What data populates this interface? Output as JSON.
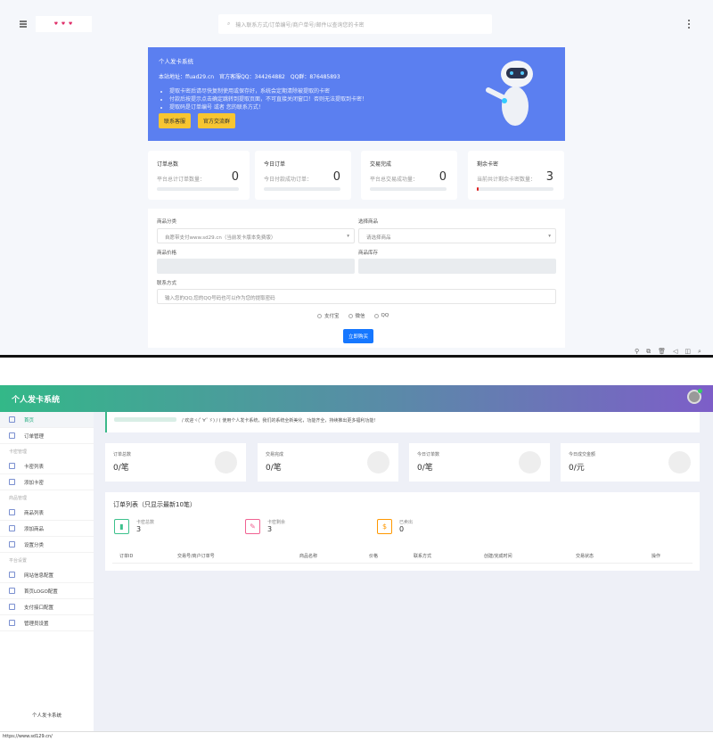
{
  "top": {
    "search_placeholder": "输入联系方式/订单编号/商户单号/邮件以查询您的卡密",
    "logo_text": "logo",
    "banner": {
      "title": "个人发卡系统",
      "info": "本站地址：ffuad29.cn　官方客服QQ：344264882　QQ群：876485893",
      "notes": [
        "提取卡密后请尽快复制使用或保存好，系统会定期清除被提取的卡密",
        "付款后按提示点击确定跳转到提取页面，不可直接关闭窗口！否则无法提取到卡密！",
        "提取码是订单编号 或者 您的联系方式！"
      ],
      "buttons": [
        "联系客服",
        "官方交流群"
      ]
    },
    "stats": [
      {
        "title": "订单总数",
        "desc": "平台总计订单数量：",
        "value": "0",
        "progress": 0
      },
      {
        "title": "今日订单",
        "desc": "今日付款成功订单：",
        "value": "0",
        "progress": 0
      },
      {
        "title": "交易完成",
        "desc": "平台总交易成功量：",
        "value": "0",
        "progress": 0
      },
      {
        "title": "剩余卡密",
        "desc": "当前共计剩余卡密数量：",
        "value": "3",
        "progress": 2
      }
    ],
    "form": {
      "category_label": "商品分类",
      "category_value": "自愿带支付www.sd29.cn（当前发卡版本免费版）",
      "product_label": "选择商品",
      "product_placeholder": "请选择商品",
      "price_label": "商品价格",
      "stock_label": "商品库存",
      "contact_label": "联系方式",
      "contact_placeholder": "输入您的QQ,您的QQ号码也可以作为您的提取密码",
      "payments": [
        "支付宝",
        "微信",
        "QQ"
      ],
      "buy_button": "立即购买"
    },
    "toolbar_icons": [
      "pin-icon",
      "copy-icon",
      "trash-icon",
      "mute-icon",
      "window-icon",
      "search-icon"
    ]
  },
  "bottom": {
    "app_title": "个人发卡系统",
    "sidebar": {
      "items": [
        {
          "type": "item",
          "label": "首页",
          "active": true
        },
        {
          "type": "item",
          "label": "订单管理"
        },
        {
          "type": "group",
          "label": "卡密管理"
        },
        {
          "type": "item",
          "label": "卡密列表"
        },
        {
          "type": "item",
          "label": "添加卡密"
        },
        {
          "type": "group",
          "label": "商品管理"
        },
        {
          "type": "item",
          "label": "商品列表"
        },
        {
          "type": "item",
          "label": "添加商品"
        },
        {
          "type": "item",
          "label": "设置分类"
        },
        {
          "type": "group",
          "label": "平台设置"
        },
        {
          "type": "item",
          "label": "网站信息配置"
        },
        {
          "type": "item",
          "label": "首页LOGO配置"
        },
        {
          "type": "item",
          "label": "支付接口配置"
        },
        {
          "type": "item",
          "label": "管理员设置"
        }
      ],
      "footer": "个人发卡系统"
    },
    "welcome": "/ 欢迎ヾ(ﾟ∀ﾟゞ) / ( 使用个人发卡系统，我们的系统全新美化，功能齐全，持续推出更多福利功能!",
    "stats": [
      {
        "label": "订单总数",
        "value": "0/笔"
      },
      {
        "label": "交易完成",
        "value": "0/笔"
      },
      {
        "label": "今日订单数",
        "value": "0/笔"
      },
      {
        "label": "今日成交金额",
        "value": "0/元"
      }
    ],
    "orders": {
      "title": "订单列表（只显示最新10笔）",
      "summary": [
        {
          "label": "卡密总数",
          "value": "3",
          "color": "#3cc18c",
          "icon": "chart-icon"
        },
        {
          "label": "卡密剩余",
          "value": "3",
          "color": "#f06292",
          "icon": "card-icon"
        },
        {
          "label": "已卖出",
          "value": "0",
          "color": "#ff9800",
          "icon": "dollar-icon"
        }
      ],
      "columns": [
        "订单ID",
        "交易号/商户订单号",
        "商品名称",
        "价格",
        "联系方式",
        "创建/完成时间",
        "交易状态",
        "操作"
      ]
    },
    "status_url": "https://www.sd129.cn/"
  },
  "colors": {
    "banner": "#5b7ff0",
    "button_yellow": "#f7c531",
    "primary": "#1677ff",
    "header_start": "#33b888",
    "header_end": "#7d5ec8"
  }
}
